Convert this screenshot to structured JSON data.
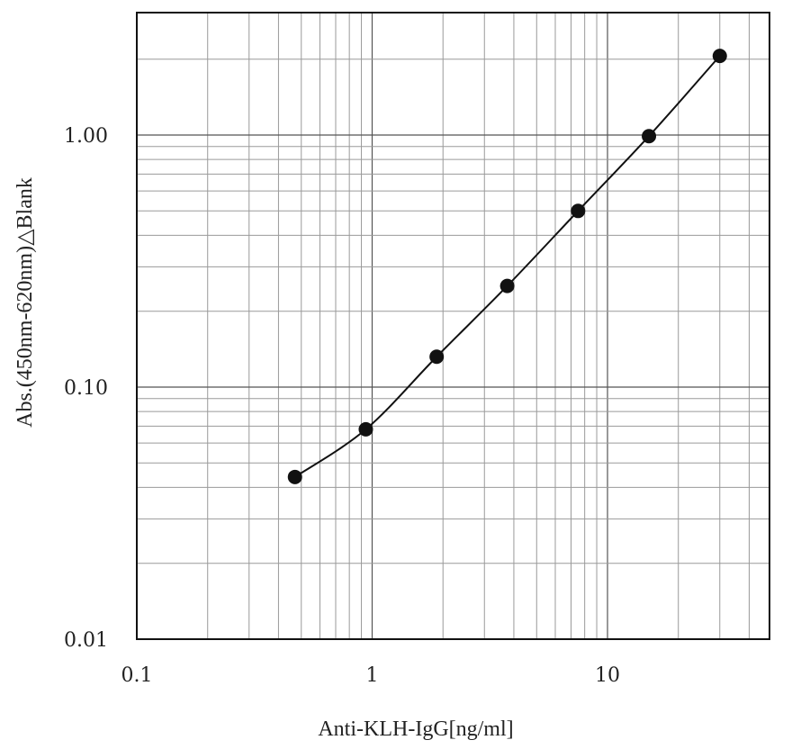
{
  "chart_data": {
    "type": "line",
    "x_scale": "log",
    "y_scale": "log",
    "xlim": [
      0.1,
      50
    ],
    "ylim": [
      0.01,
      3
    ],
    "xlabel": "Anti-KLH-IgG[ng/ml]",
    "ylabel": "Abs.(450nm-620nm)△Blank",
    "x_ticks": [
      0.1,
      1,
      10
    ],
    "x_tick_labels": [
      "0.1",
      "1",
      "10"
    ],
    "y_ticks": [
      0.01,
      0.1,
      1.0
    ],
    "y_tick_labels": [
      "0.01",
      "0.10",
      "1.00"
    ],
    "grid": true,
    "series": [
      {
        "x": [
          0.47,
          0.94,
          1.88,
          3.75,
          7.5,
          15,
          30
        ],
        "y": [
          0.044,
          0.068,
          0.132,
          0.252,
          0.5,
          0.99,
          2.06
        ],
        "color": "#111111",
        "marker": "circle"
      }
    ]
  }
}
